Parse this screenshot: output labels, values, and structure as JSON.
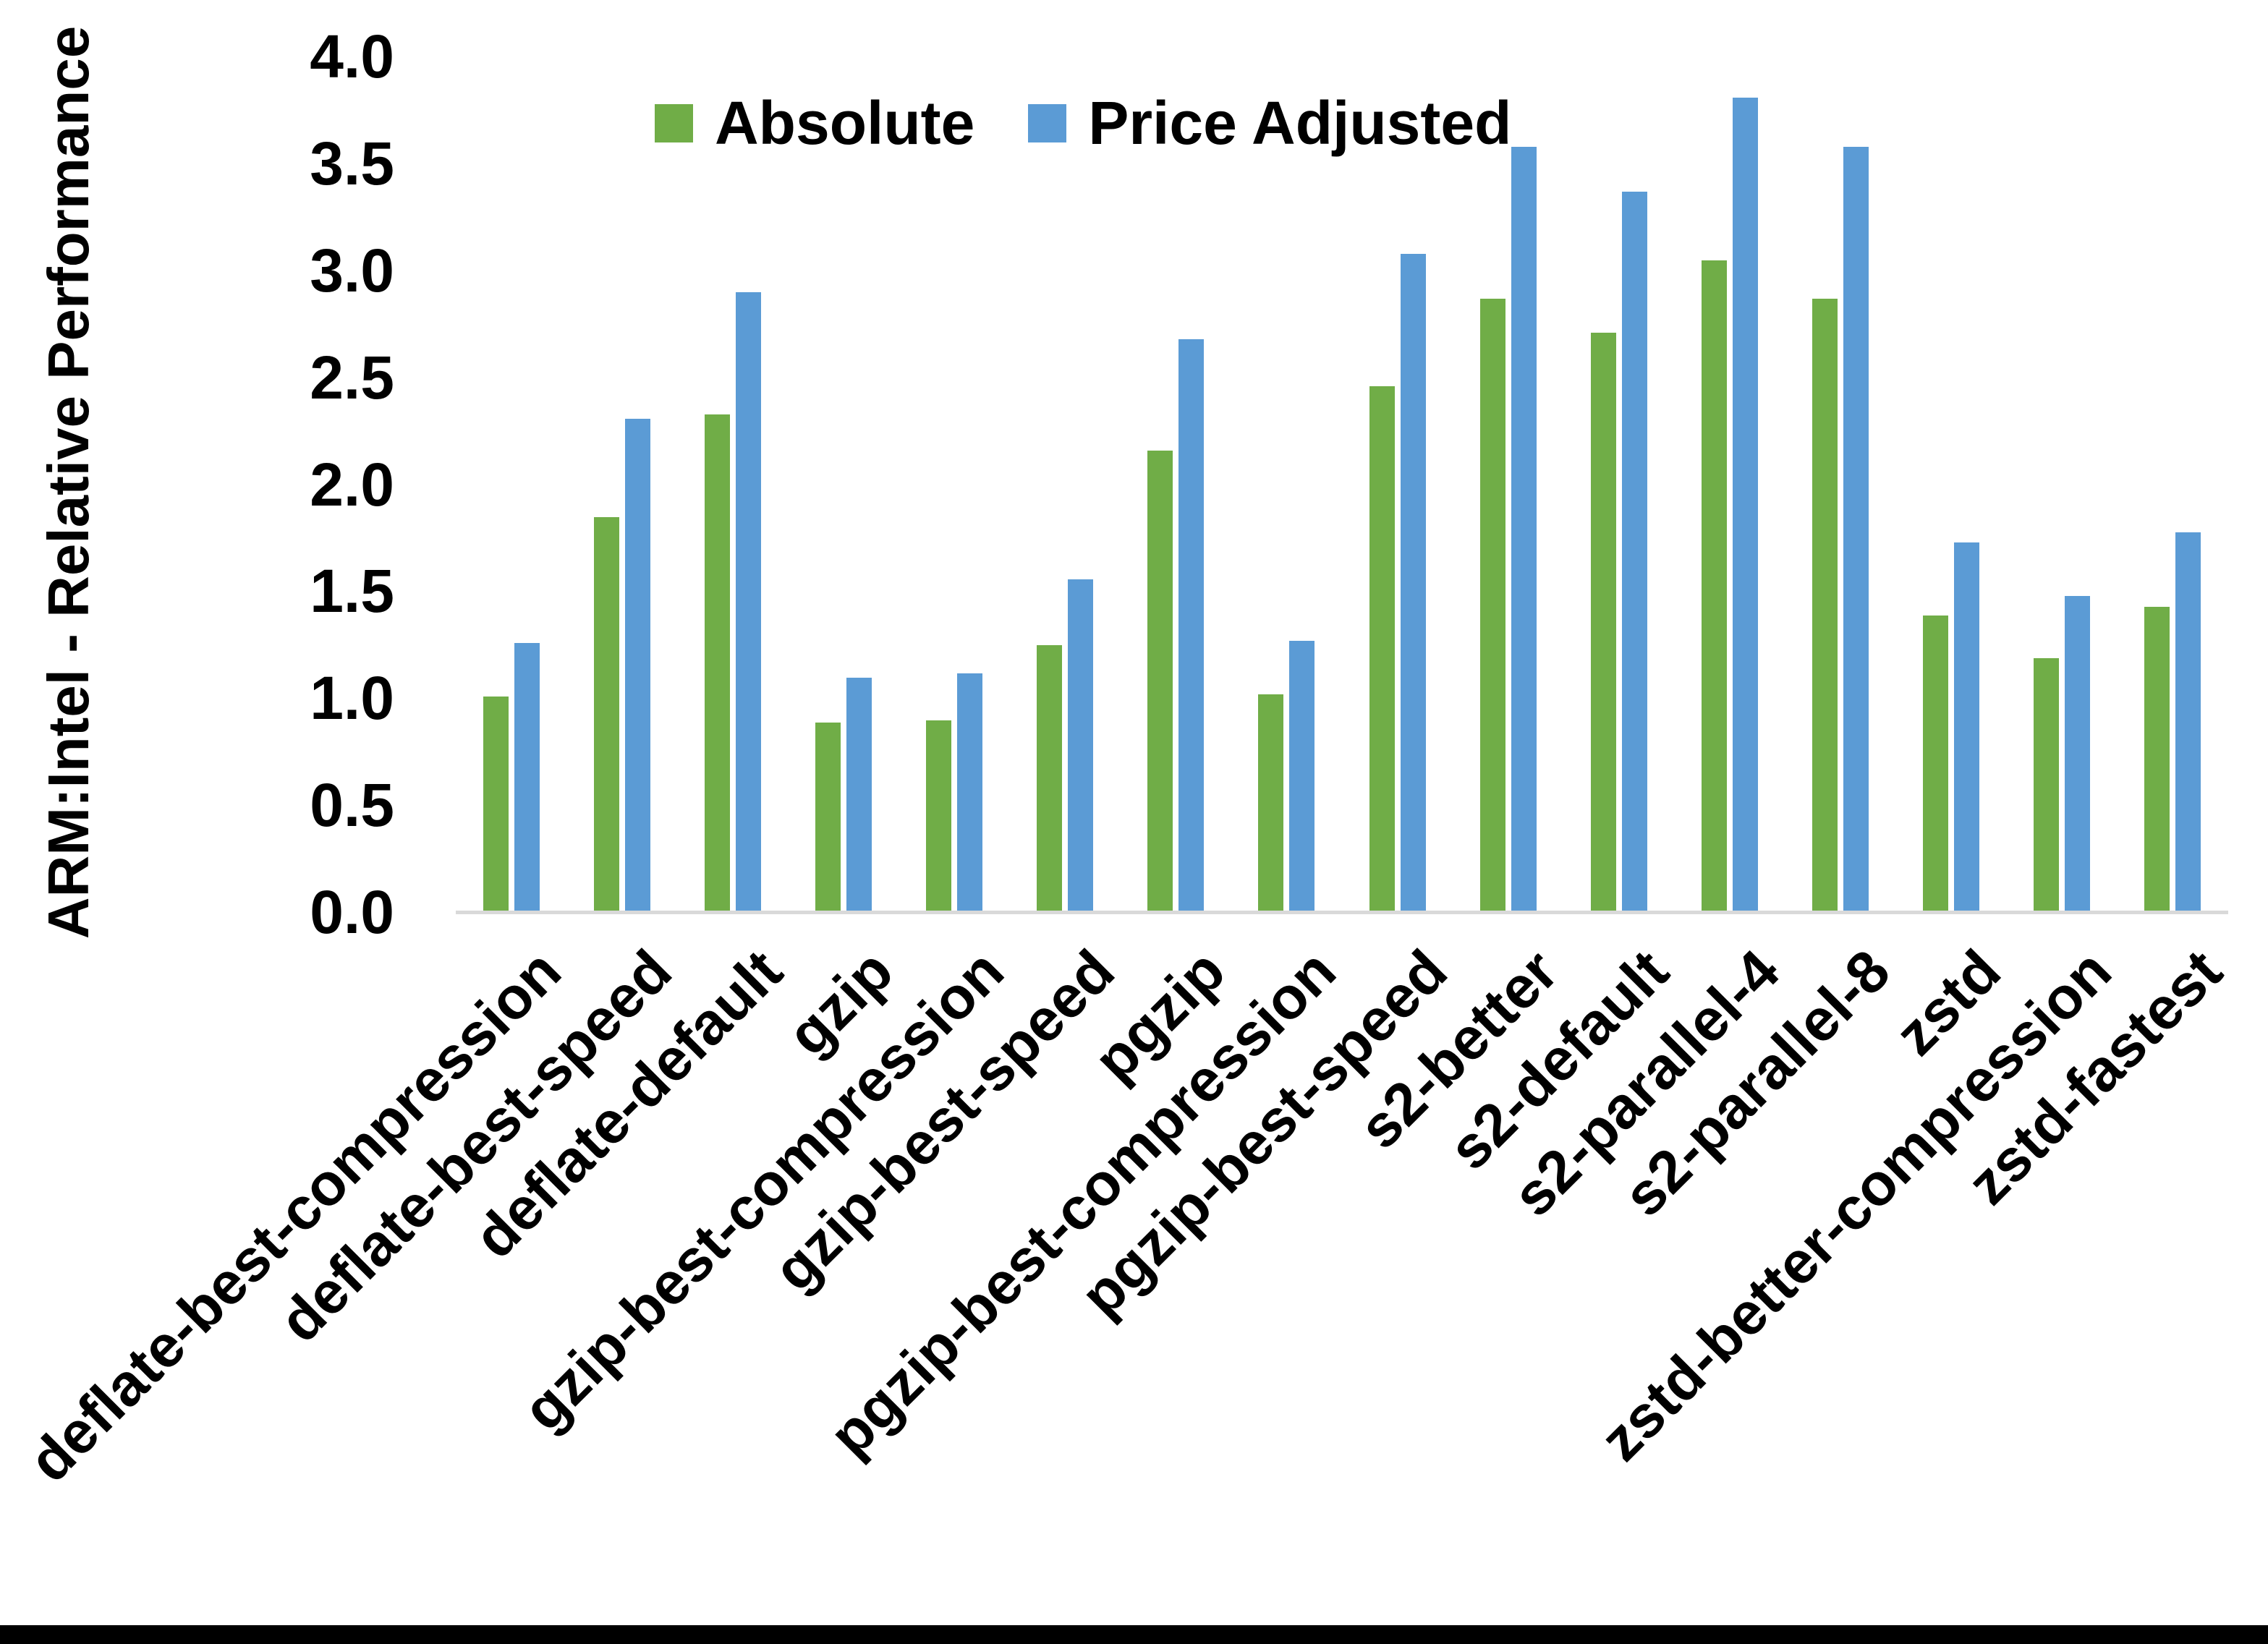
{
  "chart_data": {
    "type": "bar",
    "title": "",
    "xlabel": "",
    "ylabel": "ARM:Intel - Relative Performance",
    "ylim": [
      0.0,
      4.0
    ],
    "ytick_labels": [
      "0.0",
      "0.5",
      "1.0",
      "1.5",
      "2.0",
      "2.5",
      "3.0",
      "3.5",
      "4.0"
    ],
    "grid": false,
    "legend_position": "top-center",
    "axis_line_color": "#D9D9D9",
    "categories": [
      "deflate-best-compression",
      "deflate-best-speed",
      "deflate-default",
      "gzip",
      "gzip-best-compression",
      "gzip-best-speed",
      "pgzip",
      "pgzip-best-compression",
      "pgzip-best-speed",
      "s2-better",
      "s2-default",
      "s2-parallel-4",
      "s2-parallel-8",
      "zstd",
      "zstd-better-compression",
      "zstd-fastest"
    ],
    "series": [
      {
        "name": "Absolute",
        "color": "#70AD47",
        "values": [
          1.0,
          1.84,
          2.32,
          0.88,
          0.89,
          1.24,
          2.15,
          1.01,
          2.45,
          2.86,
          2.7,
          3.04,
          2.86,
          1.38,
          1.18,
          1.42
        ]
      },
      {
        "name": "Price Adjusted",
        "color": "#5B9BD5",
        "values": [
          1.25,
          2.3,
          2.89,
          1.09,
          1.11,
          1.55,
          2.67,
          1.26,
          3.07,
          3.57,
          3.36,
          3.8,
          3.57,
          1.72,
          1.47,
          1.77
        ]
      }
    ]
  }
}
